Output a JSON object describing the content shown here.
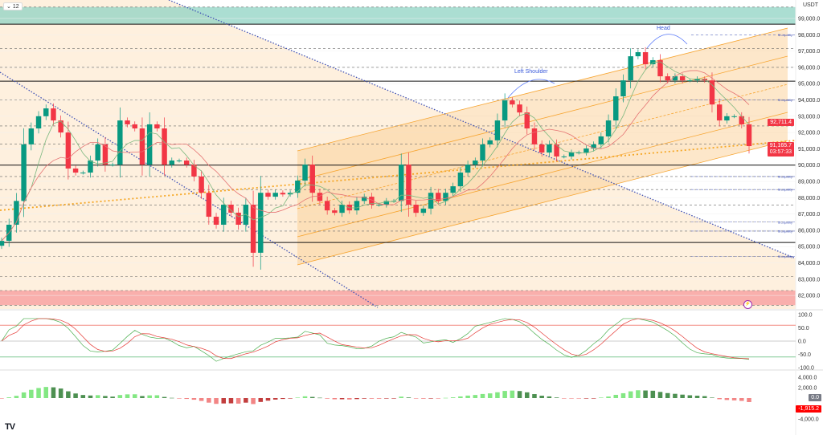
{
  "header": {
    "interval_badge": "12",
    "currency": "USDT"
  },
  "annotations": {
    "left_shoulder": "Left Shoulder",
    "head": "Head",
    "liquidity": "$ Liquidity"
  },
  "price_tags": {
    "level": "92,711.4",
    "last": "91,165.7",
    "countdown": "03:57:33",
    "osc_zero": "0.0",
    "macd_last": "-1,915.2"
  },
  "colors": {
    "up": "#089981",
    "down": "#f23645",
    "channel": "#f7a531",
    "trend": "#3f51b5",
    "supply_zone": "#8fd3c3",
    "demand_zone": "#f8a3a3",
    "ma_fast": "#7cb87f",
    "ma_slow": "#e57373",
    "hist_up": "#6de36d",
    "hist_down": "#f07070"
  },
  "chart_data": {
    "type": "candlestick",
    "price_axis": {
      "ticks": [
        "99,000.0",
        "98,000.0",
        "97,000.0",
        "96,000.0",
        "95,000.0",
        "94,000.0",
        "93,000.0",
        "92,000.0",
        "91,000.0",
        "90,000.0",
        "89,000.0",
        "88,000.0",
        "87,000.0",
        "86,000.0",
        "85,000.0",
        "84,000.0",
        "83,000.0",
        "82,000.0"
      ],
      "tick_values": [
        99000,
        98000,
        97000,
        96000,
        95000,
        94000,
        93000,
        92000,
        91000,
        90000,
        89000,
        88000,
        87000,
        86000,
        85000,
        84000,
        83000,
        82000
      ],
      "range": [
        81300,
        100100
      ]
    },
    "close": [
      85350,
      86340,
      87800,
      91270,
      92250,
      93000,
      93480,
      92740,
      92000,
      89790,
      89540,
      89540,
      90280,
      91270,
      90030,
      90030,
      92740,
      92500,
      92250,
      90030,
      92500,
      92250,
      90030,
      90280,
      90280,
      90030,
      89300,
      88300,
      86830,
      86340,
      87570,
      87080,
      86340,
      87570,
      84620,
      88300,
      88060,
      88300,
      88200,
      88300,
      89050,
      90030,
      88300,
      87800,
      87220,
      87070,
      87570,
      87220,
      87800,
      88060,
      87570,
      87570,
      87800,
      87800,
      90030,
      87570,
      87070,
      87330,
      88300,
      87800,
      88300,
      88700,
      89540,
      90030,
      90280,
      91270,
      91520,
      92740,
      93970,
      93720,
      93230,
      92250,
      91270,
      90770,
      91270,
      90530,
      90530,
      90770,
      90770,
      91020,
      91270,
      91760,
      92740,
      94220,
      95200,
      96680,
      96930,
      96190,
      96440,
      95450,
      95200,
      95450,
      95200,
      95200,
      95300,
      95200,
      93720,
      92740,
      93000,
      93000,
      92500,
      91166
    ],
    "solid_levels": [
      98650,
      95150,
      90000,
      85250
    ],
    "dashed_levels": [
      99700,
      97150,
      96000,
      94000,
      92400,
      91300,
      89300,
      88500,
      87550,
      86500,
      85950,
      84400,
      83150,
      82300,
      81400
    ],
    "liquidity_levels": [
      98000,
      94000,
      89300,
      88500,
      86500,
      85950,
      84400
    ],
    "supply_zone": [
      98650,
      99700
    ],
    "demand_zone": [
      81400,
      82300
    ],
    "oscillator_axis": {
      "ticks": [
        "100.0",
        "50.0",
        "0.0",
        "-50.0",
        "-100.0"
      ],
      "tick_values": [
        100,
        50,
        0,
        -50,
        -100
      ],
      "overbought": 60,
      "oversold": -60
    },
    "macd_axis": {
      "ticks": [
        "4,000.0",
        "2,000.0",
        "-4,000.0"
      ],
      "tick_values": [
        4000,
        2000,
        -4000
      ]
    }
  }
}
